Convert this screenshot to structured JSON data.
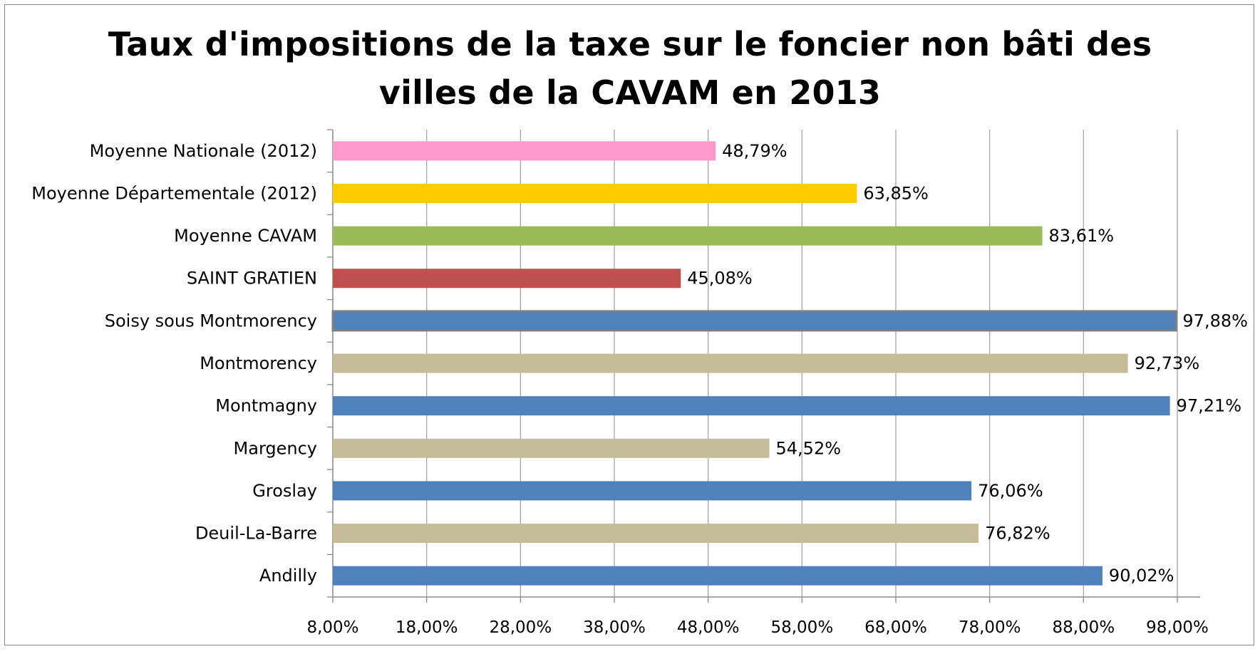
{
  "chart_data": {
    "type": "bar",
    "orientation": "horizontal",
    "title_lines": [
      "Taux d'impositions de la taxe sur le foncier non bâti des",
      "villes de la CAVAM en 2013"
    ],
    "categories": [
      "Moyenne Nationale (2012)",
      "Moyenne Départementale (2012)",
      "Moyenne CAVAM",
      "SAINT GRATIEN",
      "Soisy sous Montmorency",
      "Montmorency",
      "Montmagny",
      "Margency",
      "Groslay",
      "Deuil-La-Barre",
      "Andilly"
    ],
    "values": [
      48.79,
      63.85,
      83.61,
      45.08,
      97.88,
      92.73,
      97.21,
      54.52,
      76.06,
      76.82,
      90.02
    ],
    "value_labels": [
      "48,79%",
      "63,85%",
      "83,61%",
      "45,08%",
      "97,88%",
      "92,73%",
      "97,21%",
      "54,52%",
      "76,06%",
      "76,82%",
      "90,02%"
    ],
    "colors": [
      "#ff99cc",
      "#ffcc00",
      "#9bbb59",
      "#c0504d",
      "#4f81bd",
      "#c4bd97",
      "#4f81bd",
      "#c4bd97",
      "#4f81bd",
      "#c4bd97",
      "#4f81bd"
    ],
    "highlight_outline": "#7f7f7f",
    "highlighted_index": 4,
    "xlim": [
      8,
      98
    ],
    "x_ticks": [
      8,
      18,
      28,
      38,
      48,
      58,
      68,
      78,
      88,
      98
    ],
    "x_tick_labels": [
      "8,00%",
      "18,00%",
      "28,00%",
      "38,00%",
      "48,00%",
      "58,00%",
      "68,00%",
      "78,00%",
      "88,00%",
      "98,00%"
    ],
    "grid": "vertical",
    "grid_color": "#a6a6a6",
    "xlabel": "",
    "ylabel": ""
  }
}
